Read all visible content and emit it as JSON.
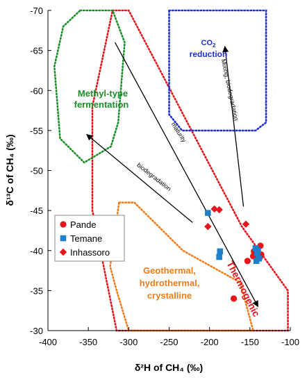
{
  "chart_data": {
    "type": "scatter",
    "xlabel": "δ²H of CH₄ (‰)",
    "ylabel": "δ¹³C of CH₄ (‰)",
    "xlim": [
      -400,
      -100
    ],
    "ylim": [
      -70,
      -30
    ],
    "y_axis_inverted": true,
    "x_ticks": [
      "-400",
      "-350",
      "-300",
      "-250",
      "-200",
      "-150",
      "-100"
    ],
    "y_ticks": [
      "-70",
      "-65",
      "-60",
      "-55",
      "-50",
      "-45",
      "-40",
      "-35",
      "-30"
    ],
    "grid": false,
    "legend_position": "left",
    "series": [
      {
        "name": "Pande",
        "marker": "circle",
        "color": "#e8141c",
        "points": [
          {
            "x": -170,
            "y": -34.0
          },
          {
            "x": -153,
            "y": -38.7
          },
          {
            "x": -146,
            "y": -39.3
          },
          {
            "x": -145,
            "y": -39.9
          },
          {
            "x": -143,
            "y": -39.6
          },
          {
            "x": -141,
            "y": -40.0
          },
          {
            "x": -138,
            "y": -39.1
          },
          {
            "x": -137,
            "y": -40.6
          },
          {
            "x": -136,
            "y": -39.5
          }
        ]
      },
      {
        "name": "Temane",
        "marker": "square",
        "color": "#1f7fc8",
        "points": [
          {
            "x": -202,
            "y": -44.7
          },
          {
            "x": -187,
            "y": -39.9
          },
          {
            "x": -188,
            "y": -39.2
          },
          {
            "x": -143,
            "y": -40.3
          },
          {
            "x": -141,
            "y": -39.7
          },
          {
            "x": -139,
            "y": -39.0
          },
          {
            "x": -142,
            "y": -38.7
          },
          {
            "x": -140,
            "y": -40.0
          }
        ]
      },
      {
        "name": "Inhassoro",
        "marker": "diamond",
        "color": "#e8141c",
        "points": [
          {
            "x": -202,
            "y": -43.0
          },
          {
            "x": -194,
            "y": -45.2
          },
          {
            "x": -188,
            "y": -45.1
          },
          {
            "x": -155,
            "y": -43.3
          }
        ]
      }
    ],
    "regions": [
      {
        "name": "Thermogenic",
        "color": "#e8141c",
        "outline": [
          [
            -320,
            -70
          ],
          [
            -300,
            -70
          ],
          [
            -160,
            -43
          ],
          [
            -103,
            -35
          ],
          [
            -103,
            -30
          ],
          [
            -315,
            -30
          ],
          [
            -345,
            -45
          ],
          [
            -345,
            -58
          ]
        ]
      },
      {
        "name": "Methyl-type fermentation",
        "color": "#1a8f2a",
        "outline": [
          [
            -360,
            -70
          ],
          [
            -320,
            -70
          ],
          [
            -305,
            -66
          ],
          [
            -313,
            -56
          ],
          [
            -322,
            -53
          ],
          [
            -355,
            -51
          ],
          [
            -385,
            -54
          ],
          [
            -392,
            -63
          ],
          [
            -381,
            -68
          ]
        ]
      },
      {
        "name": "CO₂ reduction",
        "color": "#1f2fd6",
        "outline": [
          [
            -250,
            -70
          ],
          [
            -130,
            -70
          ],
          [
            -130,
            -56
          ],
          [
            -143,
            -55
          ],
          [
            -234,
            -55
          ],
          [
            -250,
            -57
          ]
        ]
      },
      {
        "name": "Geothermal, hydrothermal, crystalline",
        "color": "#f07d1a",
        "outline": [
          [
            -312,
            -46
          ],
          [
            -293,
            -46
          ],
          [
            -233,
            -40
          ],
          [
            -162,
            -36
          ],
          [
            -146,
            -30
          ],
          [
            -300,
            -30
          ],
          [
            -315,
            -35
          ],
          [
            -323,
            -38
          ]
        ]
      }
    ],
    "arrows": [
      {
        "label": "maturity",
        "from": [
          -317,
          -66
        ],
        "to": [
          -140,
          -33
        ]
      },
      {
        "label": "biodegradation",
        "from": [
          -221,
          -43.5
        ],
        "to": [
          -352,
          -54.5
        ]
      },
      {
        "label": "Mixing, biodegradation",
        "from": [
          -158,
          -45.5
        ],
        "to": [
          -181,
          -65.5
        ]
      }
    ],
    "annotations": {
      "methyl_line1": "Methyl-type",
      "methyl_line2": "fermentation",
      "co2_line1": "CO",
      "co2_sub": "2",
      "co2_line2": "reduction",
      "geo_line1": "Geothermal,",
      "geo_line2": "hydrothermal,",
      "geo_line3": "crystalline",
      "thermogenic": "Thermogenic"
    }
  }
}
